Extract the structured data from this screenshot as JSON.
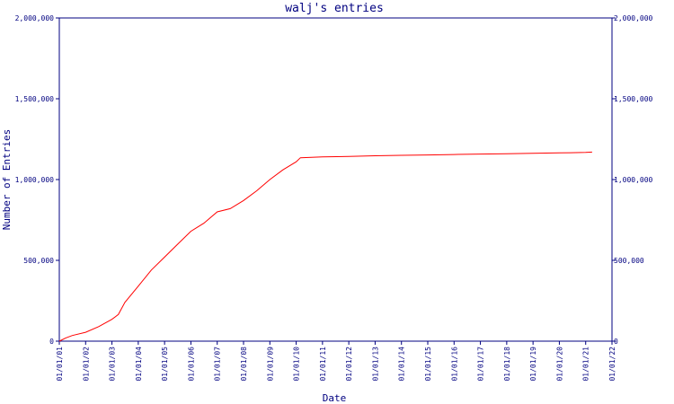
{
  "chart_data": {
    "type": "line",
    "title": "walj's entries",
    "xlabel": "Date",
    "ylabel": "Number of Entries",
    "ylim": [
      0,
      2000000
    ],
    "y_ticks": [
      0,
      500000,
      1000000,
      1500000,
      2000000
    ],
    "y_tick_labels": [
      "0",
      "500,000",
      "1,000,000",
      "1,500,000",
      "2,000,000"
    ],
    "y_tick_labels_right": [
      "0",
      "500,000",
      "1,000,000",
      "1,500,000",
      "2,000,000"
    ],
    "x_tick_labels": [
      "01/01/01",
      "01/01/02",
      "01/01/03",
      "01/01/04",
      "01/01/05",
      "01/01/06",
      "01/01/07",
      "01/01/08",
      "01/01/09",
      "01/01/10",
      "01/01/11",
      "01/01/12",
      "01/01/13",
      "01/01/14",
      "01/01/15",
      "01/01/16",
      "01/01/17",
      "01/01/18",
      "01/01/19",
      "01/01/20",
      "01/01/21",
      "01/01/22"
    ],
    "xlim": [
      "2001-01-01",
      "2022-01-01"
    ],
    "grid": false,
    "series": [
      {
        "color": "#ff0000",
        "x": [
          "2001-01-01",
          "2001-04-01",
          "2001-07-01",
          "2002-01-01",
          "2002-07-01",
          "2003-01-01",
          "2003-04-01",
          "2003-07-01",
          "2004-01-01",
          "2004-07-01",
          "2005-01-01",
          "2005-07-01",
          "2006-01-01",
          "2006-07-01",
          "2007-01-01",
          "2007-07-01",
          "2008-01-01",
          "2008-07-01",
          "2009-01-01",
          "2009-07-01",
          "2010-01-01",
          "2010-03-01",
          "2011-01-01",
          "2012-01-01",
          "2013-01-01",
          "2014-01-01",
          "2015-01-01",
          "2016-01-01",
          "2017-01-01",
          "2018-01-01",
          "2019-01-01",
          "2020-01-01",
          "2021-01-01",
          "2021-04-01"
        ],
        "values": [
          0,
          20000,
          35000,
          55000,
          90000,
          135000,
          165000,
          240000,
          340000,
          440000,
          520000,
          600000,
          680000,
          730000,
          800000,
          820000,
          870000,
          930000,
          1000000,
          1060000,
          1110000,
          1135000,
          1140000,
          1143000,
          1147000,
          1150000,
          1152000,
          1155000,
          1158000,
          1160000,
          1162000,
          1165000,
          1168000,
          1170000
        ]
      }
    ]
  }
}
